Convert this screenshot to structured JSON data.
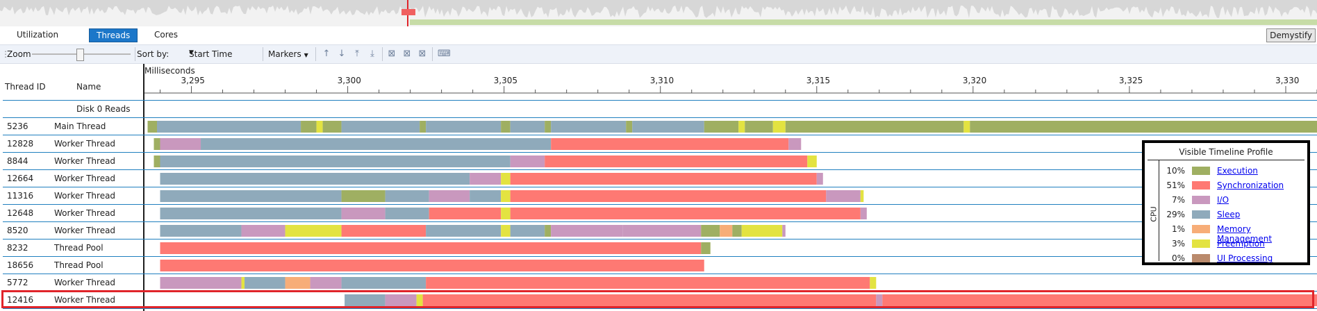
{
  "tabs": [
    {
      "label": "Utilization",
      "active": false
    },
    {
      "label": "Threads",
      "active": true
    },
    {
      "label": "Cores",
      "active": false
    }
  ],
  "demystify_label": "Demystify",
  "toolbar": {
    "zoom_label": "Zoom",
    "sort_label": "Sort by:",
    "sort_value": "Start Time",
    "markers_label": "Markers"
  },
  "timeline": {
    "axis_label": "Milliseconds",
    "ticks": [
      "3,295",
      "3,300",
      "3,305",
      "3,310",
      "3,315",
      "3,320",
      "3,325",
      "3,330"
    ],
    "tick_values": [
      3295,
      3300,
      3305,
      3310,
      3315,
      3320,
      3325,
      3330
    ],
    "range": [
      3293.5,
      3331.0
    ]
  },
  "columns": {
    "thread_id": "Thread ID",
    "name": "Name"
  },
  "category_colors": {
    "Execution": "#9faf62",
    "Synchronization": "#fe7973",
    "I/O": "#c998be",
    "Sleep": "#8faabb",
    "Memory Management": "#f7ad78",
    "Preemption": "#e3e341",
    "UI Processing": "#ba8a6c"
  },
  "rows": [
    {
      "id": "",
      "name": "Disk 0 Reads",
      "segments": []
    },
    {
      "id": "5236",
      "name": "Main Thread",
      "segments": [
        {
          "start": 3293.6,
          "end": 3293.9,
          "cat": "Execution"
        },
        {
          "start": 3293.9,
          "end": 3298.5,
          "cat": "Sleep"
        },
        {
          "start": 3298.5,
          "end": 3299.0,
          "cat": "Execution"
        },
        {
          "start": 3299.0,
          "end": 3299.2,
          "cat": "Preemption"
        },
        {
          "start": 3299.2,
          "end": 3299.8,
          "cat": "Execution"
        },
        {
          "start": 3299.8,
          "end": 3302.3,
          "cat": "Sleep"
        },
        {
          "start": 3302.3,
          "end": 3302.5,
          "cat": "Execution"
        },
        {
          "start": 3302.5,
          "end": 3304.9,
          "cat": "Sleep"
        },
        {
          "start": 3304.9,
          "end": 3305.2,
          "cat": "Execution"
        },
        {
          "start": 3305.2,
          "end": 3306.3,
          "cat": "Sleep"
        },
        {
          "start": 3306.3,
          "end": 3306.5,
          "cat": "Execution"
        },
        {
          "start": 3306.5,
          "end": 3308.9,
          "cat": "Sleep"
        },
        {
          "start": 3308.9,
          "end": 3309.1,
          "cat": "Execution"
        },
        {
          "start": 3309.1,
          "end": 3311.4,
          "cat": "Sleep"
        },
        {
          "start": 3311.4,
          "end": 3312.5,
          "cat": "Execution"
        },
        {
          "start": 3312.5,
          "end": 3312.7,
          "cat": "Preemption"
        },
        {
          "start": 3312.7,
          "end": 3313.6,
          "cat": "Execution"
        },
        {
          "start": 3313.6,
          "end": 3314.0,
          "cat": "Preemption"
        },
        {
          "start": 3314.0,
          "end": 3319.7,
          "cat": "Execution"
        },
        {
          "start": 3319.7,
          "end": 3319.9,
          "cat": "Preemption"
        },
        {
          "start": 3319.9,
          "end": 3331.0,
          "cat": "Execution"
        }
      ]
    },
    {
      "id": "12828",
      "name": "Worker Thread",
      "segments": [
        {
          "start": 3293.8,
          "end": 3294.0,
          "cat": "Execution"
        },
        {
          "start": 3294.0,
          "end": 3295.3,
          "cat": "I/O"
        },
        {
          "start": 3295.3,
          "end": 3306.5,
          "cat": "Sleep"
        },
        {
          "start": 3306.5,
          "end": 3314.1,
          "cat": "Synchronization"
        },
        {
          "start": 3314.1,
          "end": 3314.5,
          "cat": "I/O"
        }
      ]
    },
    {
      "id": "8844",
      "name": "Worker Thread",
      "segments": [
        {
          "start": 3293.8,
          "end": 3294.0,
          "cat": "Execution"
        },
        {
          "start": 3294.0,
          "end": 3305.2,
          "cat": "Sleep"
        },
        {
          "start": 3305.2,
          "end": 3306.3,
          "cat": "I/O"
        },
        {
          "start": 3306.3,
          "end": 3314.7,
          "cat": "Synchronization"
        },
        {
          "start": 3314.7,
          "end": 3315.0,
          "cat": "Preemption"
        }
      ]
    },
    {
      "id": "12664",
      "name": "Worker Thread",
      "segments": [
        {
          "start": 3294.0,
          "end": 3303.9,
          "cat": "Sleep"
        },
        {
          "start": 3303.9,
          "end": 3304.9,
          "cat": "I/O"
        },
        {
          "start": 3304.9,
          "end": 3305.2,
          "cat": "Preemption"
        },
        {
          "start": 3305.2,
          "end": 3315.0,
          "cat": "Synchronization"
        },
        {
          "start": 3315.0,
          "end": 3315.2,
          "cat": "I/O"
        }
      ]
    },
    {
      "id": "11316",
      "name": "Worker Thread",
      "segments": [
        {
          "start": 3294.0,
          "end": 3299.8,
          "cat": "Sleep"
        },
        {
          "start": 3299.8,
          "end": 3301.2,
          "cat": "Execution"
        },
        {
          "start": 3301.2,
          "end": 3302.6,
          "cat": "Sleep"
        },
        {
          "start": 3302.6,
          "end": 3303.9,
          "cat": "I/O"
        },
        {
          "start": 3303.9,
          "end": 3304.9,
          "cat": "Sleep"
        },
        {
          "start": 3304.9,
          "end": 3305.2,
          "cat": "Preemption"
        },
        {
          "start": 3305.2,
          "end": 3315.3,
          "cat": "Synchronization"
        },
        {
          "start": 3315.3,
          "end": 3316.4,
          "cat": "I/O"
        },
        {
          "start": 3316.4,
          "end": 3316.5,
          "cat": "Preemption"
        }
      ]
    },
    {
      "id": "12648",
      "name": "Worker Thread",
      "segments": [
        {
          "start": 3294.0,
          "end": 3299.8,
          "cat": "Sleep"
        },
        {
          "start": 3299.8,
          "end": 3301.2,
          "cat": "I/O"
        },
        {
          "start": 3301.2,
          "end": 3302.6,
          "cat": "Sleep"
        },
        {
          "start": 3302.6,
          "end": 3304.9,
          "cat": "Synchronization"
        },
        {
          "start": 3304.9,
          "end": 3305.2,
          "cat": "Preemption"
        },
        {
          "start": 3305.2,
          "end": 3316.4,
          "cat": "Synchronization"
        },
        {
          "start": 3316.4,
          "end": 3316.6,
          "cat": "I/O"
        }
      ]
    },
    {
      "id": "8520",
      "name": "Worker Thread",
      "segments": [
        {
          "start": 3294.0,
          "end": 3296.6,
          "cat": "Sleep"
        },
        {
          "start": 3296.6,
          "end": 3298.0,
          "cat": "I/O"
        },
        {
          "start": 3298.0,
          "end": 3299.8,
          "cat": "Preemption"
        },
        {
          "start": 3299.8,
          "end": 3302.5,
          "cat": "Synchronization"
        },
        {
          "start": 3302.5,
          "end": 3304.9,
          "cat": "Sleep"
        },
        {
          "start": 3304.9,
          "end": 3305.2,
          "cat": "Preemption"
        },
        {
          "start": 3305.2,
          "end": 3306.3,
          "cat": "Sleep"
        },
        {
          "start": 3306.3,
          "end": 3306.5,
          "cat": "Execution"
        },
        {
          "start": 3306.5,
          "end": 3308.8,
          "cat": "I/O"
        },
        {
          "start": 3308.8,
          "end": 3311.3,
          "cat": "I/O"
        },
        {
          "start": 3311.3,
          "end": 3311.9,
          "cat": "Execution"
        },
        {
          "start": 3311.9,
          "end": 3312.3,
          "cat": "Memory Management"
        },
        {
          "start": 3312.3,
          "end": 3312.6,
          "cat": "Execution"
        },
        {
          "start": 3312.6,
          "end": 3313.9,
          "cat": "Preemption"
        },
        {
          "start": 3313.9,
          "end": 3314.0,
          "cat": "I/O"
        }
      ]
    },
    {
      "id": "8232",
      "name": "Thread Pool",
      "segments": [
        {
          "start": 3294.0,
          "end": 3311.3,
          "cat": "Synchronization"
        },
        {
          "start": 3311.3,
          "end": 3311.6,
          "cat": "Execution"
        }
      ]
    },
    {
      "id": "18656",
      "name": "Thread Pool",
      "segments": [
        {
          "start": 3294.0,
          "end": 3311.4,
          "cat": "Synchronization"
        }
      ]
    },
    {
      "id": "5772",
      "name": "Worker Thread",
      "segments": [
        {
          "start": 3294.0,
          "end": 3296.6,
          "cat": "I/O"
        },
        {
          "start": 3296.6,
          "end": 3296.7,
          "cat": "Preemption"
        },
        {
          "start": 3296.7,
          "end": 3298.0,
          "cat": "Sleep"
        },
        {
          "start": 3298.0,
          "end": 3298.8,
          "cat": "Memory Management"
        },
        {
          "start": 3298.8,
          "end": 3299.8,
          "cat": "I/O"
        },
        {
          "start": 3299.8,
          "end": 3302.5,
          "cat": "Sleep"
        },
        {
          "start": 3302.5,
          "end": 3316.7,
          "cat": "Synchronization"
        },
        {
          "start": 3316.7,
          "end": 3316.9,
          "cat": "Preemption"
        }
      ]
    },
    {
      "id": "12416",
      "name": "Worker Thread",
      "segments": [
        {
          "start": 3299.9,
          "end": 3301.2,
          "cat": "Sleep"
        },
        {
          "start": 3301.2,
          "end": 3302.2,
          "cat": "I/O"
        },
        {
          "start": 3302.2,
          "end": 3302.4,
          "cat": "Preemption"
        },
        {
          "start": 3302.4,
          "end": 3316.9,
          "cat": "Synchronization"
        },
        {
          "start": 3316.9,
          "end": 3317.1,
          "cat": "I/O"
        },
        {
          "start": 3317.1,
          "end": 3331.0,
          "cat": "Synchronization"
        }
      ]
    }
  ],
  "legend": {
    "title": "Visible Timeline Profile",
    "axis_label": "CPU",
    "items": [
      {
        "pct": "10%",
        "label": "Execution"
      },
      {
        "pct": "51%",
        "label": "Synchronization"
      },
      {
        "pct": "7%",
        "label": "I/O"
      },
      {
        "pct": "29%",
        "label": "Sleep"
      },
      {
        "pct": "1%",
        "label": "Memory Management"
      },
      {
        "pct": "3%",
        "label": "Preemption"
      },
      {
        "pct": "0%",
        "label": "UI Processing"
      }
    ]
  }
}
